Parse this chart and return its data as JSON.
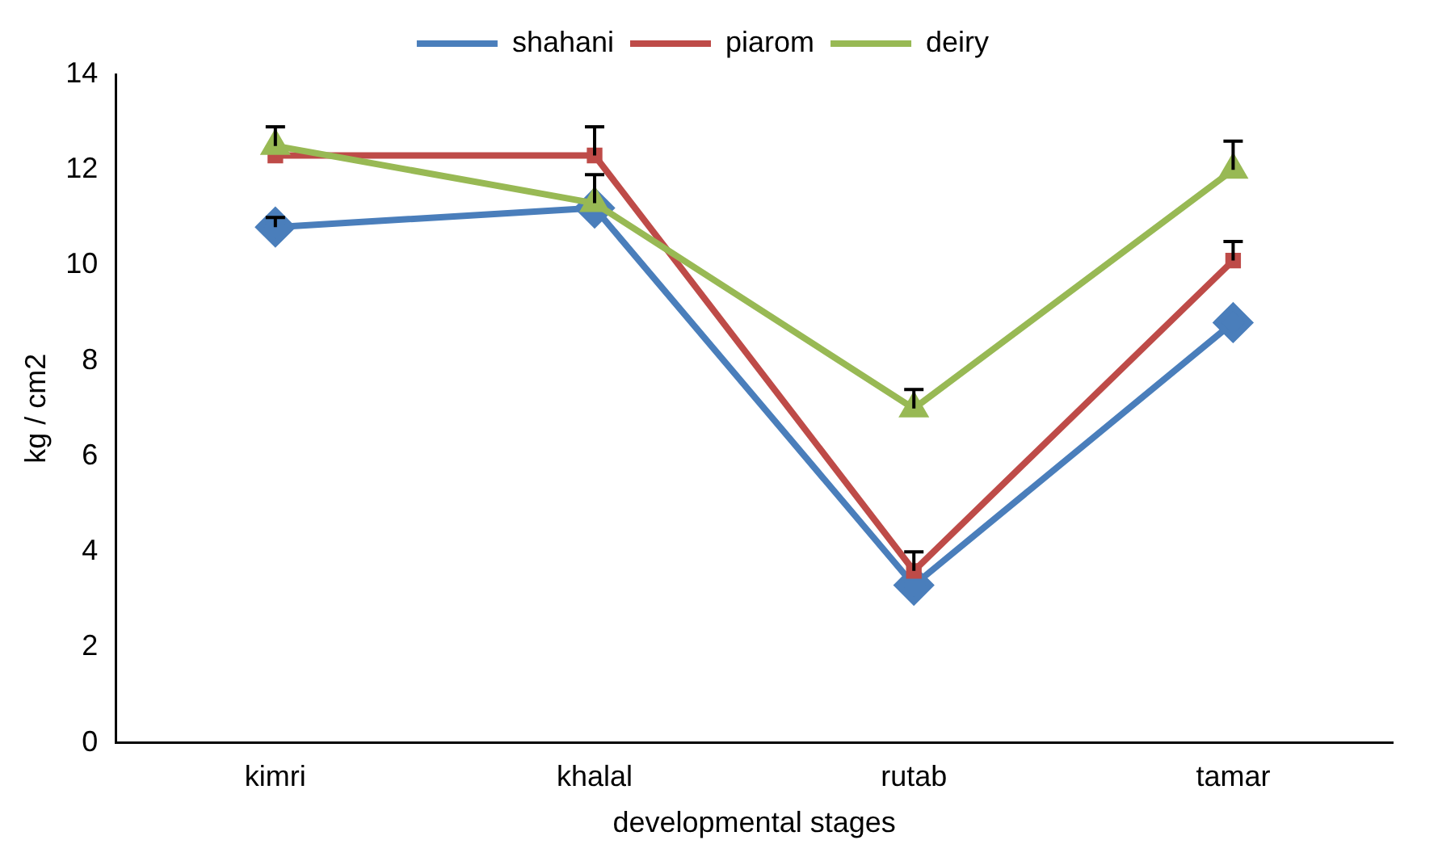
{
  "chart_data": {
    "type": "line",
    "xlabel": "developmental stages",
    "ylabel": "kg / cm2",
    "categories": [
      "kimri",
      "khalal",
      "rutab",
      "tamar"
    ],
    "series": [
      {
        "name": "shahani",
        "color": "#4a7ebb",
        "marker": "diamond",
        "values": [
          10.8,
          11.2,
          3.3,
          8.8
        ],
        "errors": [
          [
            10.8,
            11.0
          ],
          null,
          null,
          null
        ]
      },
      {
        "name": "piarom",
        "color": "#be4b48",
        "marker": "square",
        "values": [
          12.3,
          12.3,
          3.6,
          10.1
        ],
        "errors": [
          null,
          [
            12.3,
            12.9
          ],
          [
            3.6,
            4.0
          ],
          [
            10.1,
            10.5
          ]
        ]
      },
      {
        "name": "deiry",
        "color": "#98b954",
        "marker": "triangle",
        "values": [
          12.5,
          11.3,
          7.0,
          12.0
        ],
        "errors": [
          [
            12.5,
            12.9
          ],
          [
            11.3,
            11.9
          ],
          [
            7.0,
            7.4
          ],
          [
            12.0,
            12.6
          ]
        ]
      }
    ],
    "ylim": [
      0,
      14
    ],
    "yticks": [
      0,
      2,
      4,
      6,
      8,
      10,
      12,
      14
    ],
    "grid": false,
    "legend": "top",
    "line_style": "solid"
  }
}
